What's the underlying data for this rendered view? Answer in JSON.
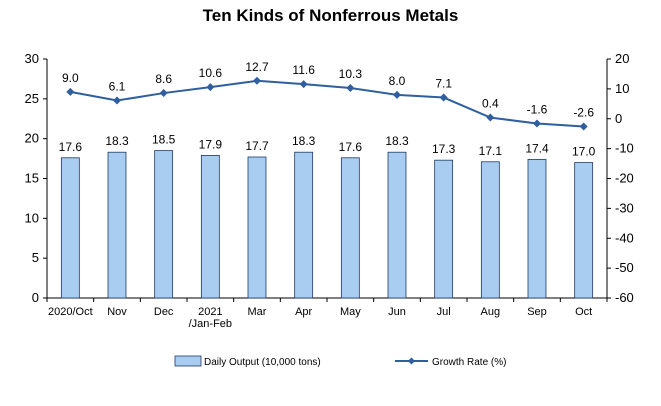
{
  "chart_data": {
    "type": "bar+line",
    "title": "Ten Kinds of Nonferrous Metals",
    "categories": [
      "2020/Oct",
      "Nov",
      "Dec",
      "2021\n/Jan-Feb",
      "Mar",
      "Apr",
      "May",
      "Jun",
      "Jul",
      "Aug",
      "Sep",
      "Oct"
    ],
    "series": [
      {
        "name": "Daily Output (10,000 tons)",
        "kind": "bar",
        "axis": "left",
        "values": [
          17.6,
          18.3,
          18.5,
          17.9,
          17.7,
          18.3,
          17.6,
          18.3,
          17.3,
          17.1,
          17.4,
          17.0
        ],
        "labels": [
          "17.6",
          "18.3",
          "18.5",
          "17.9",
          "17.7",
          "18.3",
          "17.6",
          "18.3",
          "17.3",
          "17.1",
          "17.4",
          "17.0"
        ]
      },
      {
        "name": "Growth Rate (%)",
        "kind": "line",
        "axis": "right",
        "values": [
          9.0,
          6.1,
          8.6,
          10.6,
          12.7,
          11.6,
          10.3,
          8.0,
          7.1,
          0.4,
          -1.6,
          -2.6
        ],
        "labels": [
          "9.0",
          "6.1",
          "8.6",
          "10.6",
          "12.7",
          "11.6",
          "10.3",
          "8.0",
          "7.1",
          "0.4",
          "-1.6",
          "-2.6"
        ]
      }
    ],
    "left_axis": {
      "ylim": [
        0,
        30
      ],
      "ticks": [
        "0",
        "5",
        "10",
        "15",
        "20",
        "25",
        "30"
      ]
    },
    "right_axis": {
      "ylim": [
        -60,
        20
      ],
      "ticks": [
        "-60",
        "-50",
        "-40",
        "-30",
        "-20",
        "-10",
        "0",
        "10",
        "20"
      ]
    },
    "grid": false,
    "legend_position": "bottom",
    "colors": {
      "bar_fill": "#a9cdf0",
      "bar_stroke": "#1f3864",
      "line": "#2f5f9e",
      "axis": "#000000"
    }
  }
}
